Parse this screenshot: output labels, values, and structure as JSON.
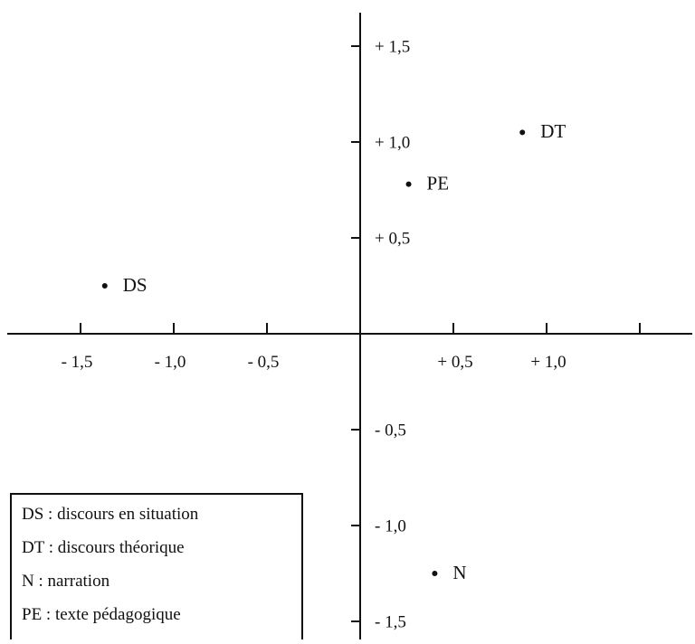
{
  "chart_data": {
    "type": "scatter",
    "title": "",
    "xlabel": "",
    "ylabel": "",
    "xlim": [
      -1.55,
      1.55
    ],
    "ylim": [
      -1.7,
      1.7
    ],
    "x_ticks": [
      {
        "value": -1.5,
        "label": "- 1,5"
      },
      {
        "value": -1.0,
        "label": "- 1,0"
      },
      {
        "value": -0.5,
        "label": "- 0,5"
      },
      {
        "value": 0.5,
        "label": "+ 0,5"
      },
      {
        "value": 1.0,
        "label": "+ 1,0"
      },
      {
        "value": 1.5,
        "label": ""
      }
    ],
    "y_ticks": [
      {
        "value": 1.5,
        "label": "+ 1,5"
      },
      {
        "value": 1.0,
        "label": "+ 1,0"
      },
      {
        "value": 0.5,
        "label": "+ 0,5"
      },
      {
        "value": -0.5,
        "label": "- 0,5"
      },
      {
        "value": -1.0,
        "label": "- 1,0"
      },
      {
        "value": -1.5,
        "label": "- 1,5"
      }
    ],
    "points": [
      {
        "label": "DS",
        "x": -1.37,
        "y": 0.25
      },
      {
        "label": "DT",
        "x": 0.87,
        "y": 1.05
      },
      {
        "label": "PE",
        "x": 0.26,
        "y": 0.78
      },
      {
        "label": "N",
        "x": 0.4,
        "y": -1.25
      }
    ],
    "grid": false,
    "legend_position": "bottom-left",
    "legend": [
      "DS : discours en situation",
      "DT : discours théorique",
      "N :  narration",
      "PE : texte pédagogique"
    ]
  }
}
